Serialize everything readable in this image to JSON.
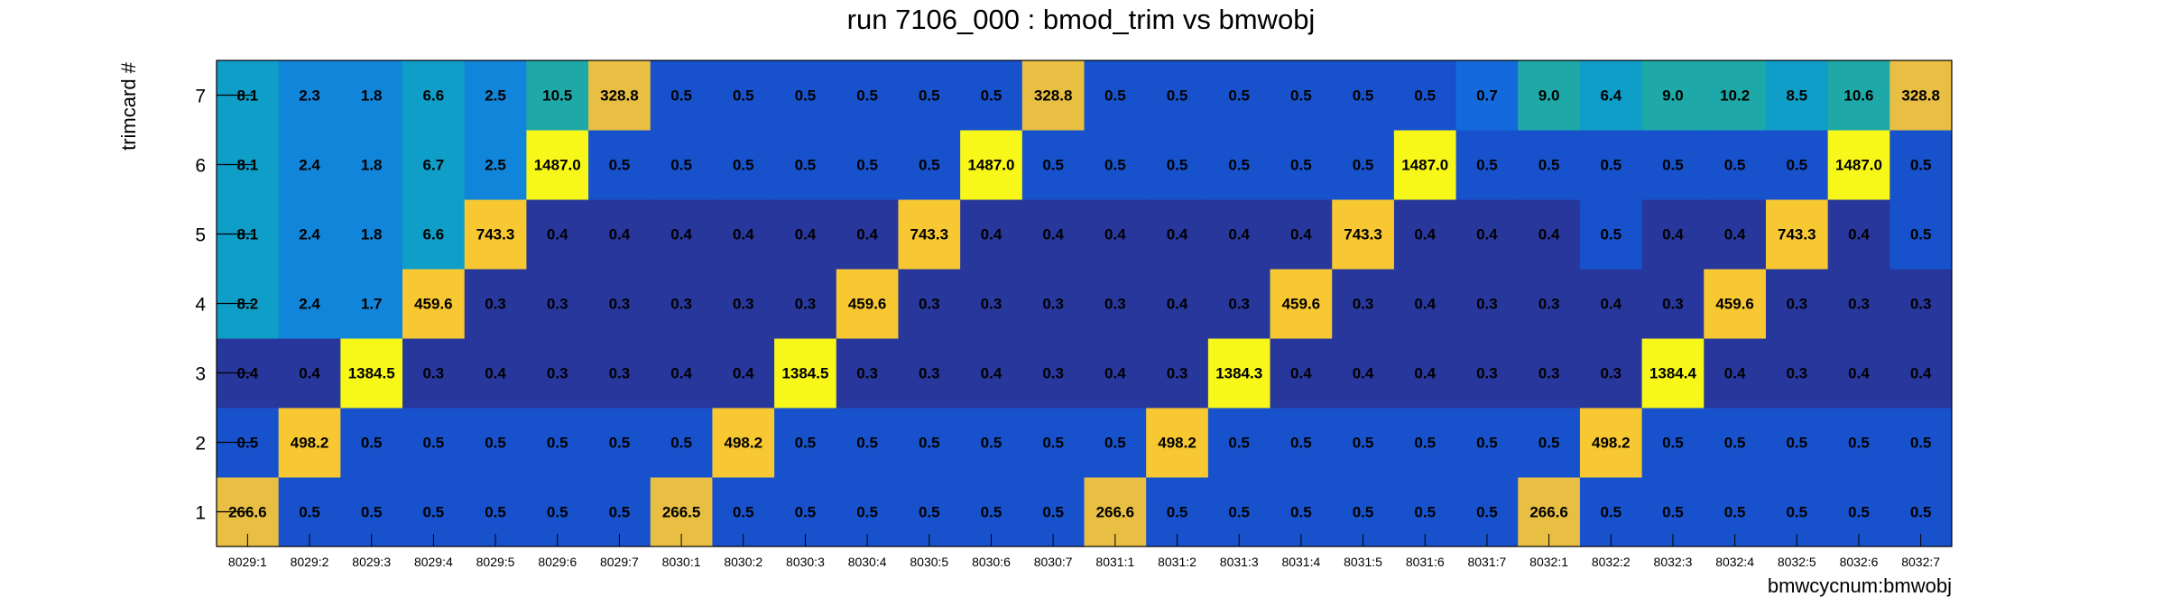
{
  "chart_data": {
    "type": "heatmap",
    "title": "run 7106_000 : bmod_trim vs bmwobj",
    "xlabel": "bmwcycnum:bmwobj",
    "ylabel": "trimcard #",
    "x_categories": [
      "8029:1",
      "8029:2",
      "8029:3",
      "8029:4",
      "8029:5",
      "8029:6",
      "8029:7",
      "8030:1",
      "8030:2",
      "8030:3",
      "8030:4",
      "8030:5",
      "8030:6",
      "8030:7",
      "8031:1",
      "8031:2",
      "8031:3",
      "8031:4",
      "8031:5",
      "8031:6",
      "8031:7",
      "8032:1",
      "8032:2",
      "8032:3",
      "8032:4",
      "8032:5",
      "8032:6",
      "8032:7"
    ],
    "y_categories": [
      "1",
      "2",
      "3",
      "4",
      "5",
      "6",
      "7"
    ],
    "values": [
      [
        "266.6",
        "0.5",
        "0.5",
        "0.5",
        "0.5",
        "0.5",
        "0.5",
        "266.5",
        "0.5",
        "0.5",
        "0.5",
        "0.5",
        "0.5",
        "0.5",
        "266.6",
        "0.5",
        "0.5",
        "0.5",
        "0.5",
        "0.5",
        "0.5",
        "266.6",
        "0.5",
        "0.5",
        "0.5",
        "0.5",
        "0.5",
        "0.5"
      ],
      [
        "0.5",
        "498.2",
        "0.5",
        "0.5",
        "0.5",
        "0.5",
        "0.5",
        "0.5",
        "498.2",
        "0.5",
        "0.5",
        "0.5",
        "0.5",
        "0.5",
        "0.5",
        "498.2",
        "0.5",
        "0.5",
        "0.5",
        "0.5",
        "0.5",
        "0.5",
        "498.2",
        "0.5",
        "0.5",
        "0.5",
        "0.5",
        "0.5"
      ],
      [
        "0.4",
        "0.4",
        "1384.5",
        "0.3",
        "0.4",
        "0.3",
        "0.3",
        "0.4",
        "0.4",
        "1384.5",
        "0.3",
        "0.3",
        "0.4",
        "0.3",
        "0.4",
        "0.3",
        "1384.3",
        "0.4",
        "0.4",
        "0.4",
        "0.3",
        "0.3",
        "0.3",
        "1384.4",
        "0.4",
        "0.3",
        "0.4",
        "0.4"
      ],
      [
        "8.2",
        "2.4",
        "1.7",
        "459.6",
        "0.3",
        "0.3",
        "0.3",
        "0.3",
        "0.3",
        "0.3",
        "459.6",
        "0.3",
        "0.3",
        "0.3",
        "0.3",
        "0.4",
        "0.3",
        "459.6",
        "0.3",
        "0.4",
        "0.3",
        "0.3",
        "0.4",
        "0.3",
        "459.6",
        "0.3",
        "0.3",
        "0.3"
      ],
      [
        "8.1",
        "2.4",
        "1.8",
        "6.6",
        "743.3",
        "0.4",
        "0.4",
        "0.4",
        "0.4",
        "0.4",
        "0.4",
        "743.3",
        "0.4",
        "0.4",
        "0.4",
        "0.4",
        "0.4",
        "0.4",
        "743.3",
        "0.4",
        "0.4",
        "0.4",
        "0.5",
        "0.4",
        "0.4",
        "743.3",
        "0.4",
        "0.5"
      ],
      [
        "8.1",
        "2.4",
        "1.8",
        "6.7",
        "2.5",
        "1487.0",
        "0.5",
        "0.5",
        "0.5",
        "0.5",
        "0.5",
        "0.5",
        "1487.0",
        "0.5",
        "0.5",
        "0.5",
        "0.5",
        "0.5",
        "0.5",
        "1487.0",
        "0.5",
        "0.5",
        "0.5",
        "0.5",
        "0.5",
        "0.5",
        "1487.0",
        "0.5"
      ],
      [
        "8.1",
        "2.3",
        "1.8",
        "6.6",
        "2.5",
        "10.5",
        "328.8",
        "0.5",
        "0.5",
        "0.5",
        "0.5",
        "0.5",
        "0.5",
        "328.8",
        "0.5",
        "0.5",
        "0.5",
        "0.5",
        "0.5",
        "0.5",
        "0.7",
        "9.0",
        "6.4",
        "9.0",
        "10.2",
        "8.5",
        "10.6",
        "328.8"
      ]
    ],
    "grid": false,
    "colors": {
      "lowest": "#28379c",
      "low": "#1752cc",
      "lowmid": "#1469db",
      "mid": "#1185d9",
      "midhigh": "#0f9ec8",
      "teal": "#1ea9a8",
      "high_gold": "#e8bf43",
      "high_orange": "#f8c832",
      "highest": "#f7f71a"
    }
  }
}
